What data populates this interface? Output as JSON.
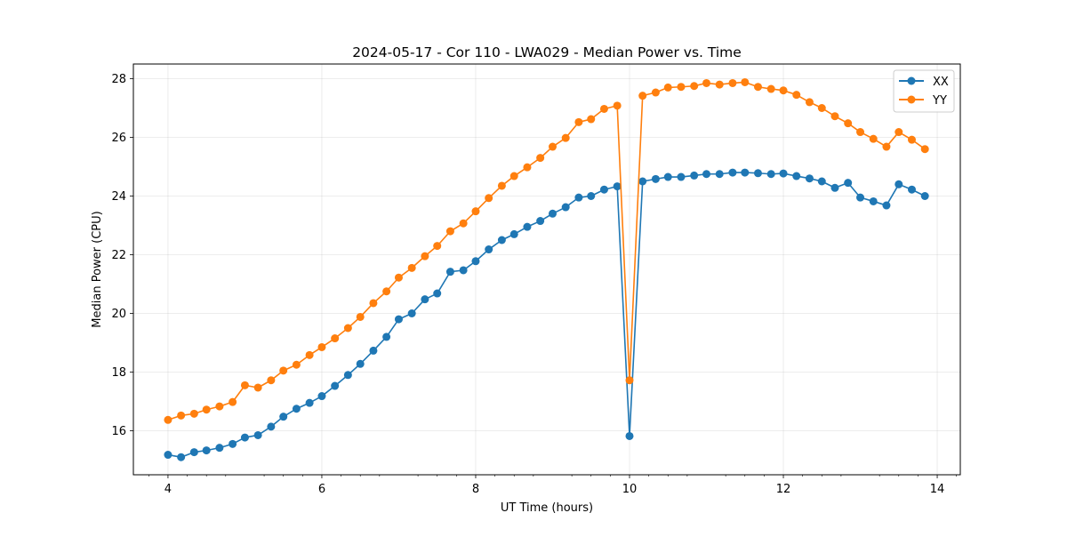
{
  "chart_data": {
    "type": "line",
    "title": "2024-05-17 - Cor 110 - LWA029 - Median Power vs. Time",
    "xlabel": "UT Time (hours)",
    "ylabel": "Median Power (CPU)",
    "xlim": [
      3.55,
      14.3
    ],
    "ylim": [
      14.5,
      28.5
    ],
    "xticks": [
      4,
      6,
      8,
      10,
      12,
      14
    ],
    "xtick_labels": [
      "4",
      "6",
      "8",
      "10",
      "12",
      "14"
    ],
    "yticks": [
      16,
      18,
      20,
      22,
      24,
      26,
      28
    ],
    "ytick_labels": [
      "16",
      "18",
      "20",
      "22",
      "24",
      "26",
      "28"
    ],
    "x_minor_ticks": [
      3.75,
      4.25,
      4.5,
      4.75,
      5.25,
      5.5,
      5.75,
      6.25,
      6.5,
      6.75,
      7.25,
      7.5,
      7.75,
      8.25,
      8.5,
      8.75,
      9.25,
      9.5,
      9.75,
      10.25,
      10.5,
      10.75,
      11.25,
      11.5,
      11.75,
      12.25,
      12.5,
      12.75,
      13.25,
      13.5,
      13.75,
      14.25
    ],
    "grid": true,
    "legend_position": "top-right",
    "x": [
      4.0,
      4.17,
      4.34,
      4.5,
      4.67,
      4.84,
      5.0,
      5.17,
      5.34,
      5.5,
      5.67,
      5.84,
      6.0,
      6.17,
      6.34,
      6.5,
      6.67,
      6.84,
      7.0,
      7.17,
      7.34,
      7.5,
      7.67,
      7.84,
      8.0,
      8.17,
      8.34,
      8.5,
      8.67,
      8.84,
      9.0,
      9.17,
      9.34,
      9.5,
      9.67,
      9.84,
      10.0,
      10.17,
      10.34,
      10.5,
      10.67,
      10.84,
      11.0,
      11.17,
      11.34,
      11.5,
      11.67,
      11.84,
      12.0,
      12.17,
      12.34,
      12.5,
      12.67,
      12.84,
      13.0,
      13.17,
      13.34,
      13.5,
      13.67,
      13.84
    ],
    "series": [
      {
        "name": "XX",
        "color": "#1f77b4",
        "values": [
          15.18,
          15.1,
          15.27,
          15.33,
          15.42,
          15.55,
          15.77,
          15.85,
          16.14,
          16.48,
          16.75,
          16.95,
          17.18,
          17.53,
          17.9,
          18.28,
          18.73,
          19.2,
          19.8,
          20.0,
          20.48,
          20.68,
          21.42,
          21.47,
          21.78,
          22.18,
          22.5,
          22.7,
          22.95,
          23.15,
          23.4,
          23.62,
          23.95,
          24.0,
          24.22,
          24.33,
          15.82,
          24.5,
          24.58,
          24.65,
          24.65,
          24.7,
          24.75,
          24.75,
          24.8,
          24.8,
          24.78,
          24.75,
          24.77,
          24.68,
          24.6,
          24.5,
          24.28,
          24.45,
          23.95,
          23.82,
          23.68,
          24.4,
          24.22,
          24.0
        ]
      },
      {
        "name": "YY",
        "color": "#ff7f0e",
        "values": [
          16.37,
          16.52,
          16.58,
          16.72,
          16.83,
          16.98,
          17.55,
          17.47,
          17.72,
          18.05,
          18.25,
          18.58,
          18.85,
          19.15,
          19.5,
          19.88,
          20.35,
          20.75,
          21.22,
          21.55,
          21.95,
          22.3,
          22.8,
          23.07,
          23.48,
          23.93,
          24.35,
          24.68,
          24.98,
          25.3,
          25.68,
          25.98,
          26.52,
          26.62,
          26.97,
          27.08,
          17.72,
          27.42,
          27.53,
          27.7,
          27.72,
          27.75,
          27.85,
          27.8,
          27.85,
          27.88,
          27.72,
          27.65,
          27.6,
          27.45,
          27.2,
          27.0,
          26.72,
          26.48,
          26.18,
          25.95,
          25.68,
          26.18,
          25.92,
          25.6
        ]
      }
    ]
  }
}
